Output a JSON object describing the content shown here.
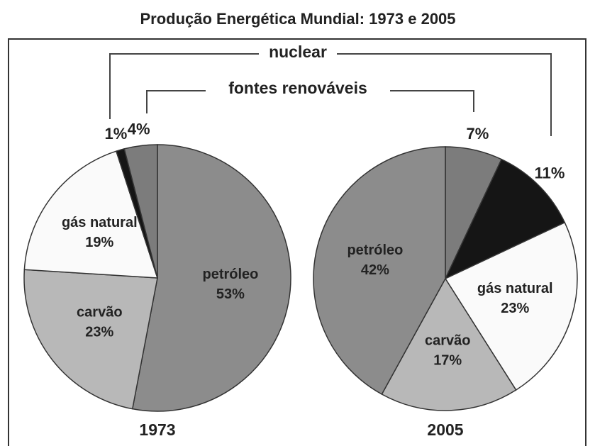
{
  "title": "Produção Energética Mundial: 1973 e 2005",
  "annotations": [
    "nuclear",
    "fontes renováveis"
  ],
  "chart_data": [
    {
      "type": "pie",
      "label": "1973",
      "categories": [
        "petróleo",
        "carvão",
        "gás natural",
        null,
        null
      ],
      "values": [
        53,
        23,
        19,
        1,
        4
      ],
      "value_labels": [
        "53%",
        "23%",
        "19%",
        "1%",
        "4%"
      ],
      "colors": [
        "#8c8c8c",
        "#b8b8b8",
        "#fafafa",
        "#151515",
        "#7c7c7c"
      ]
    },
    {
      "type": "pie",
      "label": "2005",
      "categories": [
        null,
        null,
        "gás natural",
        "carvão",
        "petróleo"
      ],
      "values": [
        7,
        11,
        23,
        17,
        42
      ],
      "value_labels": [
        "7%",
        "11%",
        "23%",
        "17%",
        "42%"
      ],
      "colors": [
        "#7c7c7c",
        "#151515",
        "#fafafa",
        "#b8b8b8",
        "#8c8c8c"
      ]
    }
  ]
}
